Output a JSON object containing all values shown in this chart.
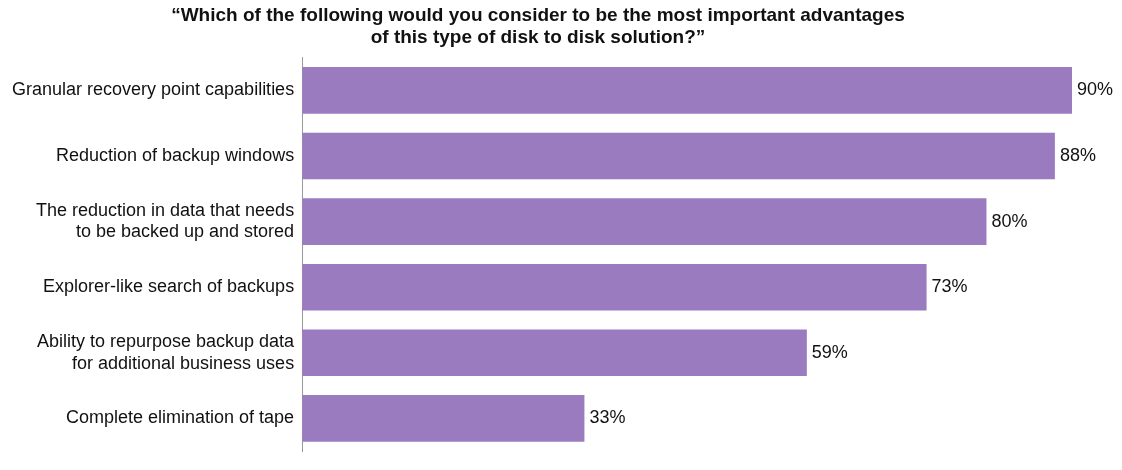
{
  "chart_data": {
    "type": "bar",
    "orientation": "horizontal",
    "title": "“Which of the following would you consider to be the most important advantages\nof this type of disk to disk solution?”",
    "categories": [
      "Granular recovery point capabilities",
      "Reduction of backup windows",
      "The reduction in data that needs\nto be backed up and stored",
      "Explorer-like search of backups",
      "Ability to repurpose backup data\nfor additional business uses",
      "Complete elimination of tape"
    ],
    "values": [
      90,
      88,
      80,
      73,
      59,
      33
    ],
    "value_labels": [
      "90%",
      "88%",
      "80%",
      "73%",
      "59%",
      "33%"
    ],
    "color": "#9b7bbf",
    "grid": false,
    "legend": false
  }
}
